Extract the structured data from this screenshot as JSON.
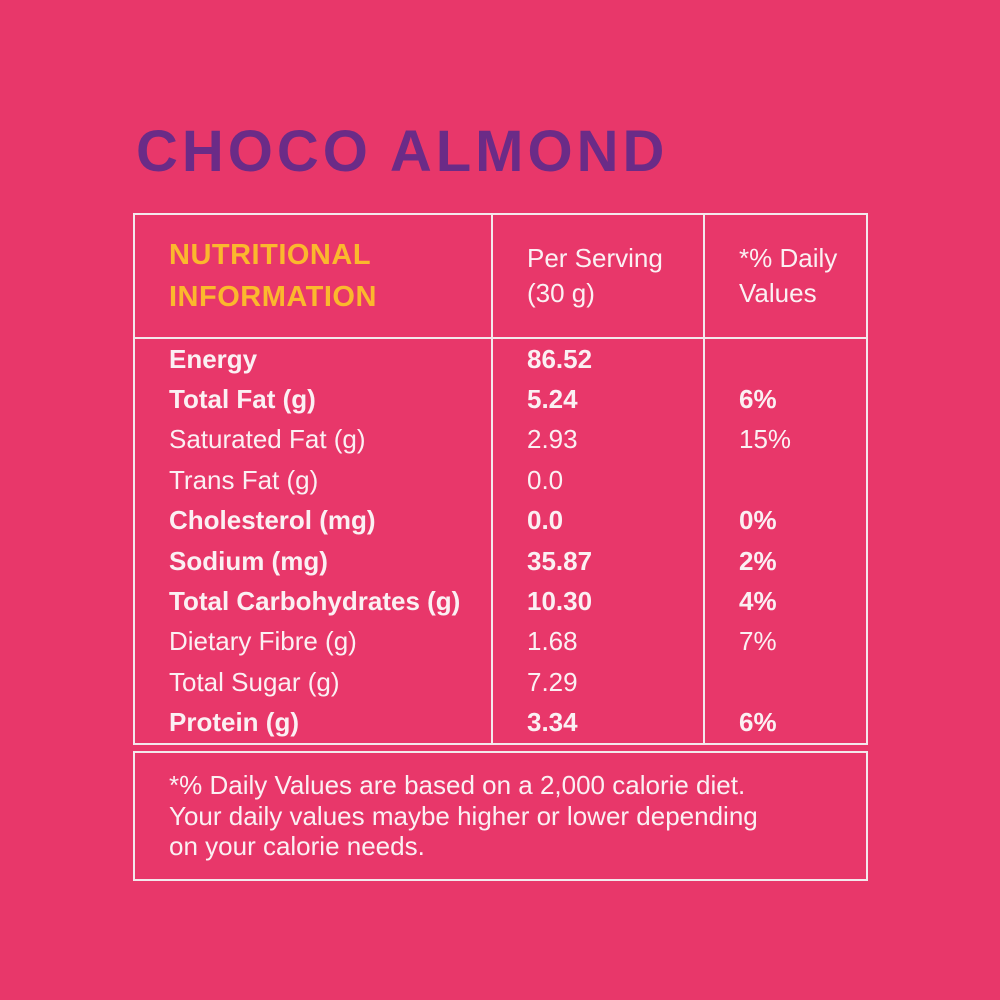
{
  "colors": {
    "background": "#E8376A",
    "title": "#6B2B87",
    "accent": "#FBB82D",
    "text": "#FBF0F3",
    "border": "#F3E8EC"
  },
  "title": "CHOCO ALMOND",
  "table": {
    "header": {
      "col1": "NUTRITIONAL\nINFORMATION",
      "col2": "Per Serving\n(30 g)",
      "col3": "*% Daily\nValues"
    },
    "rows": [
      {
        "label": "Energy",
        "value": "86.52",
        "daily": "",
        "bold": true
      },
      {
        "label": "Total Fat (g)",
        "value": "5.24",
        "daily": "6%",
        "bold": true
      },
      {
        "label": "Saturated Fat (g)",
        "value": "2.93",
        "daily": "15%",
        "bold": false
      },
      {
        "label": "Trans Fat (g)",
        "value": "0.0",
        "daily": "",
        "bold": false
      },
      {
        "label": "Cholesterol (mg)",
        "value": "0.0",
        "daily": "0%",
        "bold": true
      },
      {
        "label": "Sodium (mg)",
        "value": "35.87",
        "daily": "2%",
        "bold": true
      },
      {
        "label": "Total Carbohydrates (g)",
        "value": "10.30",
        "daily": "4%",
        "bold": true
      },
      {
        "label": "Dietary Fibre (g)",
        "value": "1.68",
        "daily": "7%",
        "bold": false
      },
      {
        "label": "Total Sugar (g)",
        "value": "7.29",
        "daily": "",
        "bold": false
      },
      {
        "label": "Protein (g)",
        "value": "3.34",
        "daily": "6%",
        "bold": true
      }
    ]
  },
  "footnote": "*% Daily Values are based on a 2,000 calorie diet.\nYour daily values maybe higher or lower depending\non your calorie needs."
}
